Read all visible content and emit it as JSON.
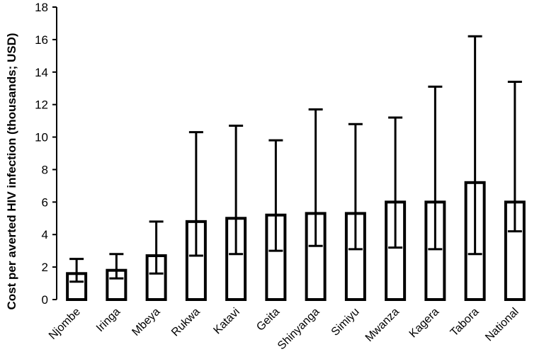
{
  "chart_data": {
    "type": "bar",
    "categories": [
      "Njombe",
      "Iringa",
      "Mbeya",
      "Rukwa",
      "Katavi",
      "Geita",
      "Shinyanga",
      "Simiyu",
      "Mwanza",
      "Kagera",
      "Tabora",
      "National"
    ],
    "values": [
      1.6,
      1.8,
      2.7,
      4.8,
      5.0,
      5.2,
      5.3,
      5.3,
      6.0,
      6.0,
      7.2,
      6.0
    ],
    "error_low": [
      1.1,
      1.3,
      1.6,
      2.7,
      2.8,
      3.0,
      3.3,
      3.1,
      3.2,
      3.1,
      2.8,
      4.2
    ],
    "error_high": [
      2.5,
      2.8,
      4.8,
      10.3,
      10.7,
      9.8,
      11.7,
      10.8,
      11.2,
      13.1,
      16.2,
      13.4
    ],
    "ylabel": "Cost per averted HIV infection (thousands; USD)",
    "xlabel": "",
    "title": "",
    "ylim": [
      0,
      18
    ],
    "yticks": [
      0,
      2,
      4,
      6,
      8,
      10,
      12,
      14,
      16,
      18
    ],
    "grid": false,
    "legend": "none",
    "bar_fill": "#ffffff",
    "bar_stroke": "#000000"
  }
}
